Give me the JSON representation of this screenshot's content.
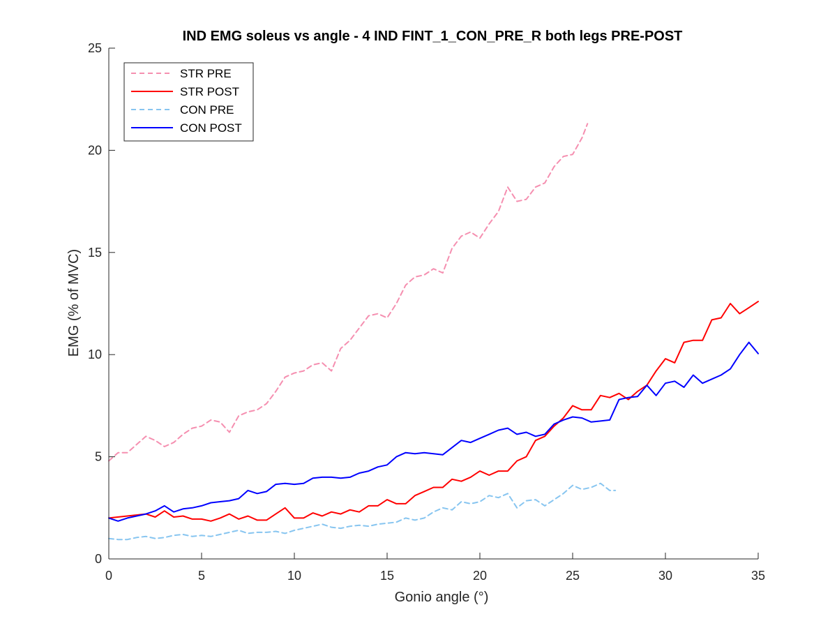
{
  "chart_data": {
    "type": "line",
    "title": "IND EMG soleus vs angle - 4 IND FINT_1_CON_PRE_R both legs PRE-POST",
    "xlabel": "Gonio angle (°)",
    "ylabel": "EMG (% of MVC)",
    "xlim": [
      0,
      35
    ],
    "ylim": [
      0,
      25
    ],
    "xticks": [
      0,
      5,
      10,
      15,
      20,
      25,
      30,
      35
    ],
    "yticks": [
      0,
      5,
      10,
      15,
      20,
      25
    ],
    "grid": false,
    "legend_position": "top-left",
    "series": [
      {
        "name": "STR PRE",
        "color": "#f58fb0",
        "style": "dashed",
        "x": [
          0,
          0.5,
          1,
          1.5,
          2,
          2.5,
          3,
          3.5,
          4,
          4.5,
          5,
          5.5,
          6,
          6.5,
          7,
          7.5,
          8,
          8.5,
          9,
          9.5,
          10,
          10.5,
          11,
          11.5,
          12,
          12.5,
          13,
          13.5,
          14,
          14.5,
          15,
          15.5,
          16,
          16.5,
          17,
          17.5,
          18,
          18.5,
          19,
          19.5,
          20,
          20.5,
          21,
          21.5,
          22,
          22.5,
          23,
          23.5,
          24,
          24.5,
          25,
          25.5,
          25.8
        ],
        "y": [
          4.8,
          5.2,
          5.2,
          5.6,
          6.0,
          5.8,
          5.5,
          5.7,
          6.1,
          6.4,
          6.5,
          6.8,
          6.7,
          6.2,
          7.0,
          7.2,
          7.3,
          7.6,
          8.2,
          8.9,
          9.1,
          9.2,
          9.5,
          9.6,
          9.2,
          10.3,
          10.7,
          11.3,
          11.9,
          12.0,
          11.8,
          12.5,
          13.4,
          13.8,
          13.9,
          14.2,
          14.0,
          15.2,
          15.8,
          16.0,
          15.7,
          16.4,
          17.0,
          18.2,
          17.5,
          17.6,
          18.2,
          18.4,
          19.2,
          19.7,
          19.8,
          20.6,
          21.3
        ]
      },
      {
        "name": "STR POST",
        "color": "#ff0000",
        "style": "solid",
        "x": [
          0,
          1,
          2,
          2.5,
          3,
          3.5,
          4,
          4.5,
          5,
          5.5,
          6,
          6.5,
          7,
          7.5,
          8,
          8.5,
          9,
          9.5,
          10,
          10.5,
          11,
          11.5,
          12,
          12.5,
          13,
          13.5,
          14,
          14.5,
          15,
          15.5,
          16,
          16.5,
          17,
          17.5,
          18,
          18.5,
          19,
          19.5,
          20,
          20.5,
          21,
          21.5,
          22,
          22.5,
          23,
          23.5,
          24,
          24.5,
          25,
          25.5,
          26,
          26.5,
          27,
          27.5,
          28,
          28.5,
          29,
          29.5,
          30,
          30.5,
          31,
          31.5,
          32,
          32.5,
          33,
          33.5,
          34,
          34.5,
          35
        ],
        "y": [
          2.0,
          2.1,
          2.2,
          2.05,
          2.35,
          2.05,
          2.1,
          1.95,
          1.95,
          1.85,
          2.0,
          2.2,
          1.95,
          2.1,
          1.9,
          1.9,
          2.2,
          2.5,
          2.0,
          2.0,
          2.25,
          2.1,
          2.3,
          2.2,
          2.4,
          2.3,
          2.6,
          2.6,
          2.9,
          2.7,
          2.7,
          3.1,
          3.3,
          3.5,
          3.5,
          3.9,
          3.8,
          4.0,
          4.3,
          4.1,
          4.3,
          4.3,
          4.8,
          5.0,
          5.8,
          6.0,
          6.5,
          6.9,
          7.5,
          7.3,
          7.3,
          8.0,
          7.9,
          8.1,
          7.8,
          8.2,
          8.5,
          9.2,
          9.8,
          9.6,
          10.6,
          10.7,
          10.7,
          11.7,
          11.8,
          12.5,
          12.0,
          12.3,
          12.6
        ]
      },
      {
        "name": "CON PRE",
        "color": "#87c5f0",
        "style": "dashed",
        "x": [
          0,
          0.5,
          1,
          1.5,
          2,
          2.5,
          3,
          3.5,
          4,
          4.5,
          5,
          5.5,
          6,
          6.5,
          7,
          7.5,
          8,
          8.5,
          9,
          9.5,
          10,
          10.5,
          11,
          11.5,
          12,
          12.5,
          13,
          13.5,
          14,
          14.5,
          15,
          15.5,
          16,
          16.5,
          17,
          17.5,
          18,
          18.5,
          19,
          19.5,
          20,
          20.5,
          21,
          21.5,
          22,
          22.5,
          23,
          23.5,
          24,
          24.5,
          25,
          25.5,
          26,
          26.5,
          27,
          27.3
        ],
        "y": [
          1.0,
          0.95,
          0.95,
          1.05,
          1.1,
          1.0,
          1.05,
          1.15,
          1.2,
          1.1,
          1.15,
          1.1,
          1.2,
          1.3,
          1.4,
          1.25,
          1.3,
          1.3,
          1.35,
          1.25,
          1.4,
          1.5,
          1.6,
          1.7,
          1.55,
          1.5,
          1.6,
          1.65,
          1.6,
          1.7,
          1.75,
          1.8,
          2.0,
          1.9,
          2.0,
          2.3,
          2.5,
          2.4,
          2.8,
          2.7,
          2.8,
          3.1,
          3.0,
          3.2,
          2.5,
          2.85,
          2.9,
          2.6,
          2.9,
          3.2,
          3.6,
          3.4,
          3.5,
          3.7,
          3.35,
          3.35
        ]
      },
      {
        "name": "CON POST",
        "color": "#0000ff",
        "style": "solid",
        "x": [
          0,
          0.5,
          1,
          1.5,
          2,
          2.5,
          3,
          3.5,
          4,
          4.5,
          5,
          5.5,
          6,
          6.5,
          7,
          7.5,
          8,
          8.5,
          9,
          9.5,
          10,
          10.5,
          11,
          11.5,
          12,
          12.5,
          13,
          13.5,
          14,
          14.5,
          15,
          15.5,
          16,
          16.5,
          17,
          17.5,
          18,
          18.5,
          19,
          19.5,
          20,
          20.5,
          21,
          21.5,
          22,
          22.5,
          23,
          23.5,
          24,
          24.5,
          25,
          25.5,
          26,
          26.5,
          27,
          27.5,
          28,
          28.5,
          29,
          29.5,
          30,
          30.5,
          31,
          31.5,
          32,
          32.5,
          33,
          33.5,
          34,
          34.5,
          35
        ],
        "y": [
          2.0,
          1.85,
          2.0,
          2.1,
          2.2,
          2.35,
          2.6,
          2.3,
          2.45,
          2.5,
          2.6,
          2.75,
          2.8,
          2.85,
          2.95,
          3.35,
          3.2,
          3.3,
          3.65,
          3.7,
          3.65,
          3.7,
          3.95,
          4.0,
          4.0,
          3.95,
          4.0,
          4.2,
          4.3,
          4.5,
          4.6,
          5.0,
          5.2,
          5.15,
          5.2,
          5.15,
          5.1,
          5.45,
          5.8,
          5.7,
          5.9,
          6.1,
          6.3,
          6.4,
          6.1,
          6.2,
          6.0,
          6.1,
          6.6,
          6.8,
          6.95,
          6.9,
          6.7,
          6.75,
          6.8,
          7.8,
          7.9,
          7.95,
          8.5,
          8.0,
          8.6,
          8.7,
          8.4,
          9.0,
          8.6,
          8.8,
          9.0,
          9.3,
          10.0,
          10.6,
          10.05
        ]
      }
    ]
  }
}
